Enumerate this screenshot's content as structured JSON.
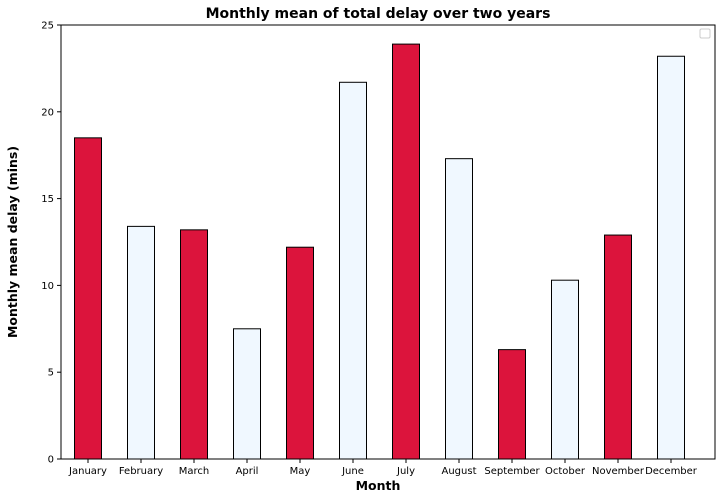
{
  "chart_data": {
    "type": "bar",
    "title": "Monthly mean of total delay over two years",
    "xlabel": "Month",
    "ylabel": "Monthly mean delay (mins)",
    "categories": [
      "January",
      "February",
      "March",
      "April",
      "May",
      "June",
      "July",
      "August",
      "September",
      "October",
      "November",
      "December"
    ],
    "values": [
      18.5,
      13.4,
      13.2,
      7.5,
      12.2,
      21.7,
      23.9,
      17.3,
      6.3,
      10.3,
      12.9,
      23.2
    ],
    "bar_colors": [
      "#dc143c",
      "#f0f8ff",
      "#dc143c",
      "#f0f8ff",
      "#dc143c",
      "#f0f8ff",
      "#dc143c",
      "#f0f8ff",
      "#dc143c",
      "#f0f8ff",
      "#dc143c",
      "#f0f8ff"
    ],
    "edge_color": "#000000",
    "ylim": [
      0,
      25
    ],
    "yticks": [
      0,
      5,
      10,
      15,
      20,
      25
    ],
    "grid": false,
    "legend": {
      "placement": "top-right",
      "entries": []
    }
  }
}
